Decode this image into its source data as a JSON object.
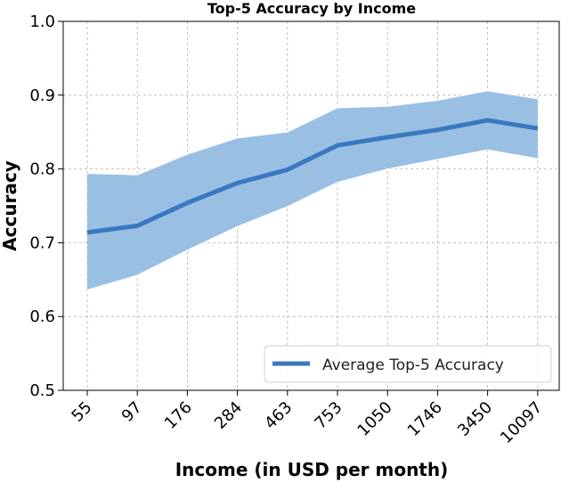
{
  "chart_data": {
    "type": "line",
    "title": "Top-5 Accuracy by Income",
    "xlabel": "Income (in USD per month)",
    "ylabel": "Accuracy",
    "categories": [
      "55",
      "97",
      "176",
      "284",
      "463",
      "753",
      "1050",
      "1746",
      "3450",
      "10097"
    ],
    "series": [
      {
        "name": "Average Top-5 Accuracy",
        "values": [
          0.714,
          0.723,
          0.754,
          0.781,
          0.799,
          0.832,
          0.843,
          0.853,
          0.866,
          0.855
        ],
        "lower": [
          0.636,
          0.656,
          0.69,
          0.722,
          0.749,
          0.782,
          0.8,
          0.813,
          0.826,
          0.814
        ],
        "upper": [
          0.794,
          0.792,
          0.82,
          0.842,
          0.85,
          0.883,
          0.885,
          0.893,
          0.906,
          0.895
        ],
        "color": "#3a78c0",
        "band_color": "#99bfe3"
      }
    ],
    "ylim": [
      0.5,
      1.0
    ],
    "yticks": [
      "0.5",
      "0.6",
      "0.7",
      "0.8",
      "0.9",
      "1.0"
    ],
    "grid": true,
    "legend_position": "bottom-right"
  }
}
